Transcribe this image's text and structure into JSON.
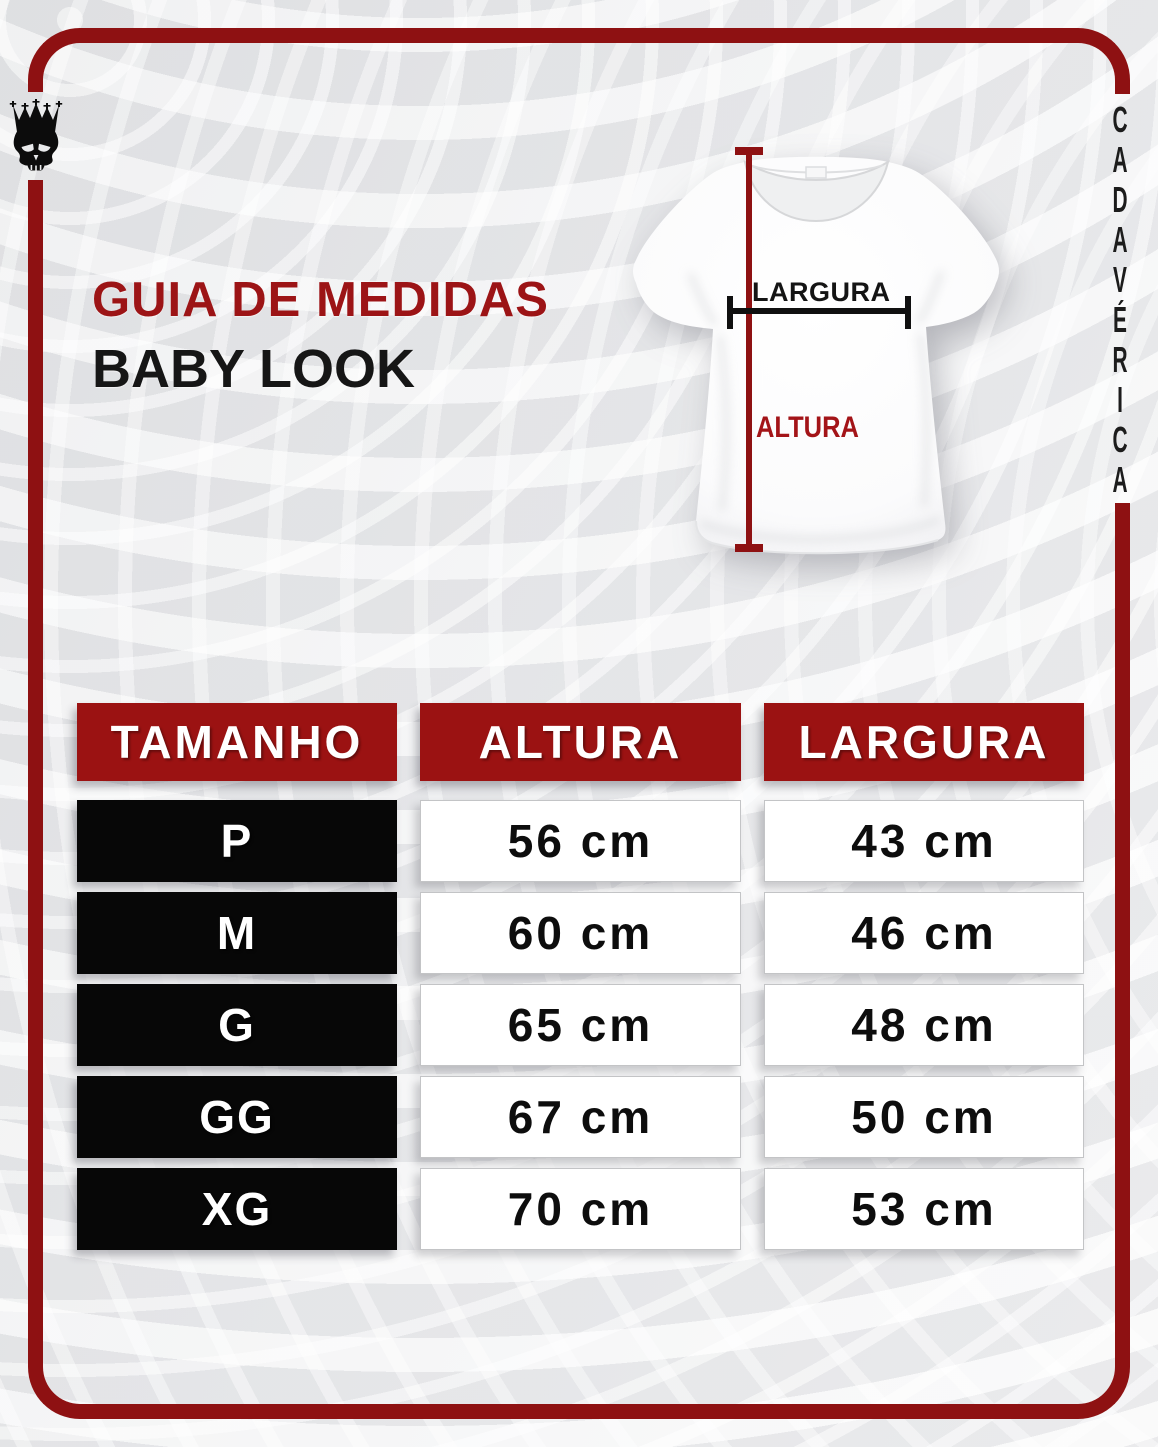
{
  "brand": {
    "logo_icon": "crowned-skull-icon",
    "vertical_text": "CADAVÉRICA"
  },
  "header": {
    "title": "GUIA DE MEDIDAS",
    "subtitle": "BABY LOOK"
  },
  "diagram": {
    "garment": "baby look t-shirt",
    "height_label": "ALTURA",
    "width_label": "LARGURA"
  },
  "size_table": {
    "columns": [
      "TAMANHO",
      "ALTURA",
      "LARGURA"
    ],
    "rows": [
      {
        "tamanho": "P",
        "altura": "56 cm",
        "largura": "43 cm"
      },
      {
        "tamanho": "M",
        "altura": "60 cm",
        "largura": "46 cm"
      },
      {
        "tamanho": "G",
        "altura": "65 cm",
        "largura": "48 cm"
      },
      {
        "tamanho": "GG",
        "altura": "67 cm",
        "largura": "50 cm"
      },
      {
        "tamanho": "XG",
        "altura": "70 cm",
        "largura": "53 cm"
      }
    ]
  },
  "colors": {
    "frame_red": "#8e1112",
    "header_red": "#9b1212",
    "title_red": "#9c1416",
    "measure_red": "#a31418",
    "cell_black": "#070707",
    "text_black": "#0d0d0d",
    "background_gray": "#e6e7e9"
  }
}
